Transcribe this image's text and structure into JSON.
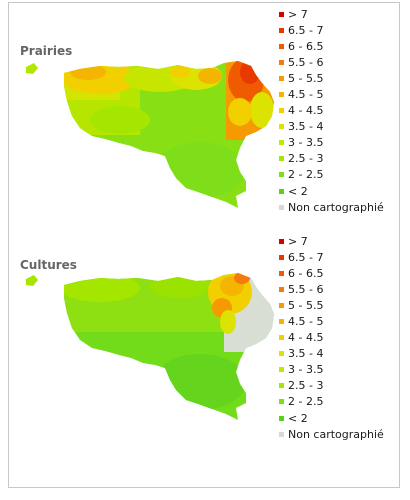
{
  "panels": [
    {
      "title": "Prairies",
      "legend": [
        {
          "label": "> 7",
          "color": "#d40000"
        },
        {
          "label": "6.5 - 7",
          "color": "#e83a00"
        },
        {
          "label": "6 - 6.5",
          "color": "#f05a00"
        },
        {
          "label": "5.5 - 6",
          "color": "#f47a10"
        },
        {
          "label": "5 - 5.5",
          "color": "#f59a00"
        },
        {
          "label": "4.5 - 5",
          "color": "#f5b400"
        },
        {
          "label": "4 - 4.5",
          "color": "#f2d000"
        },
        {
          "label": "3.5 - 4",
          "color": "#dce300"
        },
        {
          "label": "3 - 3.5",
          "color": "#c0e800"
        },
        {
          "label": "2.5 - 3",
          "color": "#a4e600"
        },
        {
          "label": "2 - 2.5",
          "color": "#7ede1a"
        },
        {
          "label": "< 2",
          "color": "#58d020"
        },
        {
          "label": "Non cartographié",
          "color": "#d8d8d8"
        }
      ]
    },
    {
      "title": "Cultures",
      "legend": [
        {
          "label": "> 7",
          "color": "#d40000"
        },
        {
          "label": "6.5 - 7",
          "color": "#e83a00"
        },
        {
          "label": "6 - 6.5",
          "color": "#f05a00"
        },
        {
          "label": "5.5 - 6",
          "color": "#f47a10"
        },
        {
          "label": "5 - 5.5",
          "color": "#f59a00"
        },
        {
          "label": "4.5 - 5",
          "color": "#f5b400"
        },
        {
          "label": "4 - 4.5",
          "color": "#f2d000"
        },
        {
          "label": "3.5 - 4",
          "color": "#dce300"
        },
        {
          "label": "3 - 3.5",
          "color": "#c0e800"
        },
        {
          "label": "2.5 - 3",
          "color": "#a4e600"
        },
        {
          "label": "2 - 2.5",
          "color": "#7ede1a"
        },
        {
          "label": "< 2",
          "color": "#58d020"
        },
        {
          "label": "Non cartographié",
          "color": "#d8d8d8"
        }
      ]
    }
  ]
}
